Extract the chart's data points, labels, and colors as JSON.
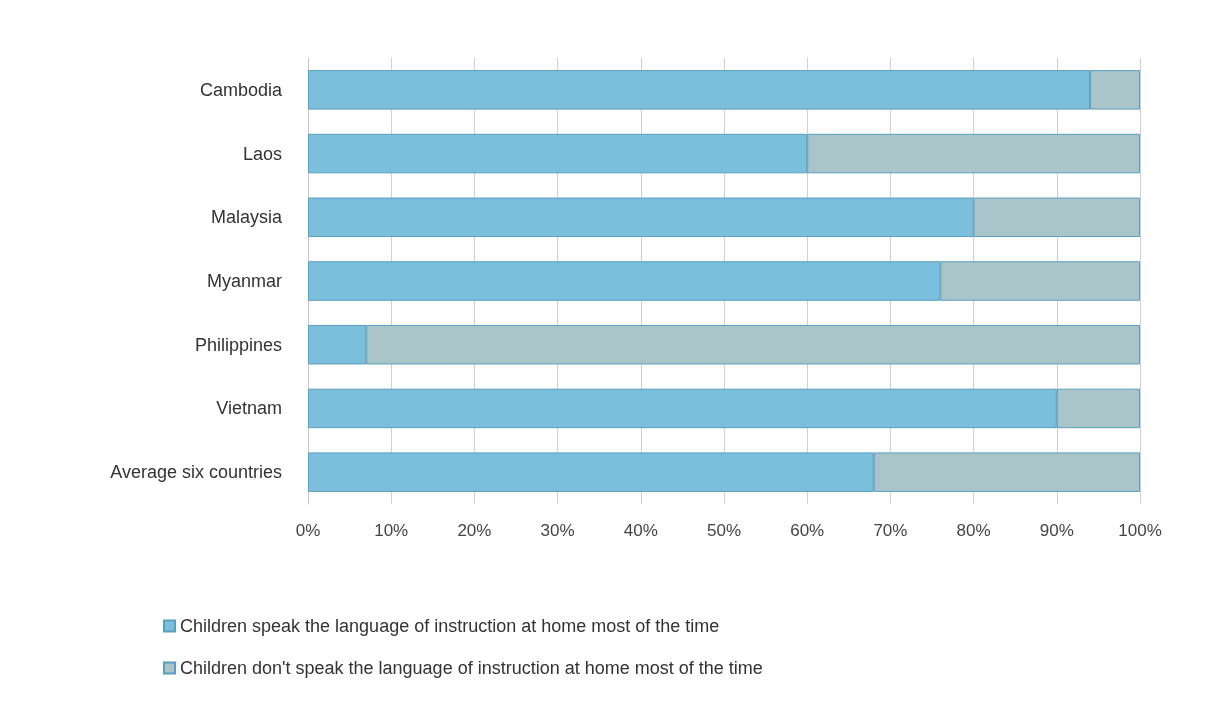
{
  "chart_data": {
    "type": "bar",
    "orientation": "horizontal",
    "stacked": true,
    "categories": [
      "Cambodia",
      "Laos",
      "Malaysia",
      "Myanmar",
      "Philippines",
      "Vietnam",
      "Average six countries"
    ],
    "series": [
      {
        "name": "Children speak the language of instruction at home most of the time",
        "color": "#7bbfdc",
        "values": [
          94,
          60,
          80,
          76,
          7,
          90,
          68
        ]
      },
      {
        "name": "Children don't speak the language of instruction at home most of the time",
        "color": "#a9c5c9",
        "values": [
          6,
          40,
          20,
          24,
          93,
          10,
          32
        ]
      }
    ],
    "xlim": [
      0,
      100
    ],
    "xticks": [
      {
        "value": 0,
        "label": "0%"
      },
      {
        "value": 10,
        "label": "10%"
      },
      {
        "value": 20,
        "label": "20%"
      },
      {
        "value": 30,
        "label": "30%"
      },
      {
        "value": 40,
        "label": "40%"
      },
      {
        "value": 50,
        "label": "50%"
      },
      {
        "value": 60,
        "label": "60%"
      },
      {
        "value": 70,
        "label": "70%"
      },
      {
        "value": 80,
        "label": "80%"
      },
      {
        "value": 90,
        "label": "90%"
      },
      {
        "value": 100,
        "label": "100%"
      }
    ],
    "grid": "x",
    "legend": "bottom"
  }
}
